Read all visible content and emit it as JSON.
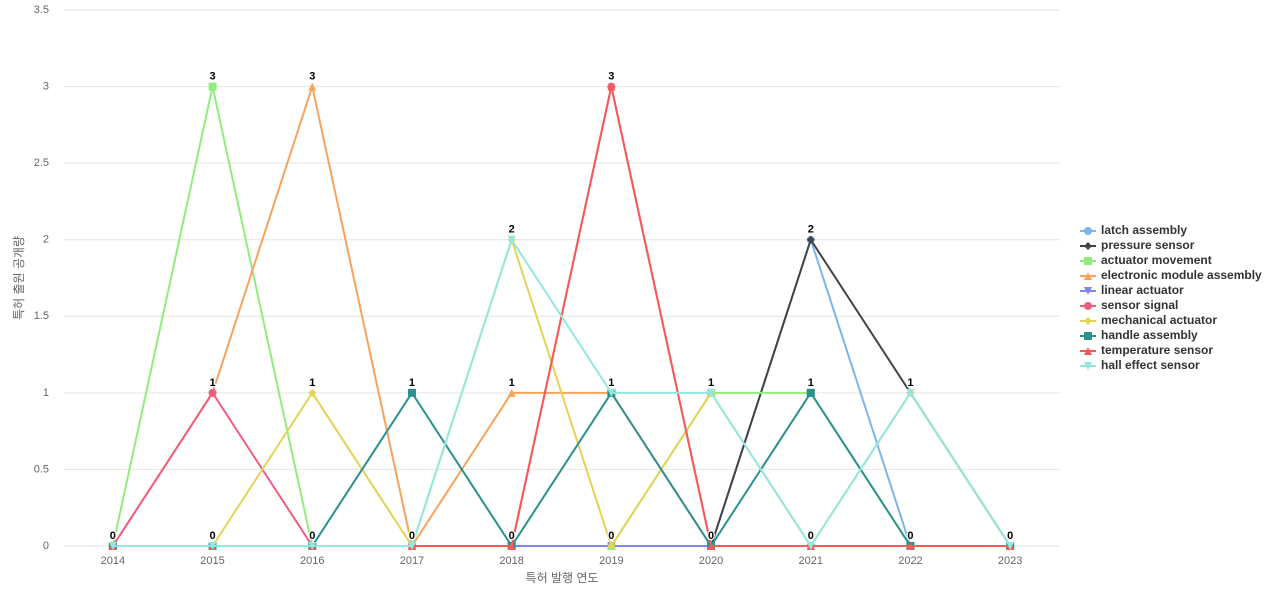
{
  "chart_data": {
    "type": "line",
    "x_label": "특허 발행 연도",
    "y_label": "특허 출원 공개량",
    "categories": [
      "2014",
      "2015",
      "2016",
      "2017",
      "2018",
      "2019",
      "2020",
      "2021",
      "2022",
      "2023"
    ],
    "ylim": [
      0,
      3.5
    ],
    "yticks": [
      0,
      0.5,
      1,
      1.5,
      2,
      2.5,
      3,
      3.5
    ],
    "grid": true,
    "series": [
      {
        "name": "latch assembly",
        "color": "#7cb5ec",
        "values": [
          0,
          0,
          0,
          0,
          0,
          0,
          0,
          2,
          0,
          0
        ]
      },
      {
        "name": "pressure sensor",
        "color": "#434348",
        "values": [
          0,
          0,
          0,
          0,
          0,
          0,
          0,
          2,
          1,
          0
        ]
      },
      {
        "name": "actuator movement",
        "color": "#90ed7d",
        "values": [
          0,
          3,
          0,
          0,
          0,
          0,
          1,
          1,
          0,
          0
        ]
      },
      {
        "name": "electronic module assembly",
        "color": "#f7a35c",
        "values": [
          0,
          1,
          3,
          0,
          1,
          1,
          0,
          0,
          0,
          0
        ]
      },
      {
        "name": "linear actuator",
        "color": "#8085e9",
        "values": [
          0,
          0,
          0,
          0,
          0,
          0,
          0,
          0,
          0,
          0
        ]
      },
      {
        "name": "sensor signal",
        "color": "#f15c80",
        "values": [
          0,
          1,
          0,
          0,
          0,
          3,
          0,
          0,
          0,
          0
        ]
      },
      {
        "name": "mechanical actuator",
        "color": "#e4d354",
        "values": [
          0,
          0,
          1,
          0,
          2,
          0,
          1,
          0,
          1,
          0
        ]
      },
      {
        "name": "handle assembly",
        "color": "#2b908f",
        "values": [
          0,
          0,
          0,
          1,
          0,
          1,
          0,
          1,
          0,
          0
        ]
      },
      {
        "name": "temperature sensor",
        "color": "#f45b5b",
        "values": [
          0,
          0,
          0,
          0,
          0,
          3,
          0,
          0,
          0,
          0
        ]
      },
      {
        "name": "hall effect sensor",
        "color": "#91e8e1",
        "values": [
          0,
          0,
          0,
          0,
          2,
          1,
          1,
          0,
          1,
          0
        ]
      }
    ]
  }
}
